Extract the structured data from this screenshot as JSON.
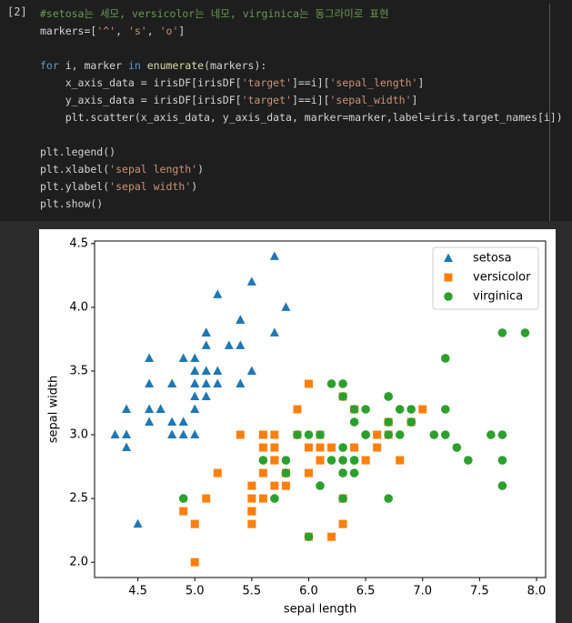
{
  "cell": {
    "prompt": "[2]",
    "code": [
      [
        "#setosa는 세모, versicolor는 네모, virginica는 동그라미로 표현",
        "markers=['^', 's', 'o']"
      ],
      [
        "for i, marker in enumerate(markers):",
        "    x_axis_data = irisDF[irisDF['target']==i]['sepal_length']",
        "    y_axis_data = irisDF[irisDF['target']==i]['sepal_width']",
        "    plt.scatter(x_axis_data, y_axis_data, marker=marker,label=iris.target_names[i])"
      ],
      [
        "plt.legend()",
        "plt.xlabel('sepal length')",
        "plt.ylabel('sepal width')",
        "plt.show()"
      ]
    ]
  },
  "chart_data": {
    "type": "scatter",
    "x_label": "sepal length",
    "y_label": "sepal width",
    "xlim": [
      4.12,
      8.08
    ],
    "ylim": [
      1.88,
      4.52
    ],
    "xticks": [
      4.5,
      {
        "value": 5,
        "label": "5.0"
      },
      5.5,
      {
        "value": 6,
        "label": "6.0"
      },
      6.5,
      {
        "value": 7,
        "label": "7.0"
      },
      7.5,
      {
        "value": 8,
        "label": "8.0"
      }
    ],
    "yticks": [
      {
        "value": 2,
        "label": "2.0"
      },
      2.5,
      {
        "value": 3,
        "label": "3.0"
      },
      3.5,
      {
        "value": 4,
        "label": "4.0"
      },
      4.5
    ],
    "grid": false,
    "legend": "upper right",
    "series": [
      {
        "name": "setosa",
        "color": "#1f77b4",
        "marker": "triangle",
        "x": [
          5.1,
          4.9,
          4.7,
          4.6,
          5.0,
          5.4,
          4.6,
          5.0,
          4.4,
          4.9,
          5.4,
          4.8,
          4.8,
          4.3,
          5.8,
          5.7,
          5.4,
          5.1,
          5.7,
          5.1,
          5.4,
          5.1,
          4.6,
          5.1,
          4.8,
          5.0,
          5.0,
          5.2,
          5.2,
          4.7,
          4.8,
          5.4,
          5.2,
          5.5,
          4.9,
          5.0,
          5.5,
          4.9,
          4.4,
          5.1,
          5.0,
          4.5,
          4.4,
          5.0,
          5.1,
          4.8,
          5.1,
          4.6,
          5.3,
          5.0
        ],
        "values": [
          3.5,
          3.0,
          3.2,
          3.1,
          3.6,
          3.9,
          3.4,
          3.4,
          2.9,
          3.1,
          3.7,
          3.4,
          3.0,
          3.0,
          4.0,
          4.4,
          3.9,
          3.5,
          3.8,
          3.8,
          3.4,
          3.7,
          3.6,
          3.3,
          3.4,
          3.0,
          3.4,
          3.5,
          3.4,
          3.2,
          3.1,
          3.4,
          4.1,
          4.2,
          3.1,
          3.2,
          3.5,
          3.6,
          3.0,
          3.4,
          3.5,
          2.3,
          3.2,
          3.5,
          3.8,
          3.0,
          3.8,
          3.2,
          3.7,
          3.3
        ]
      },
      {
        "name": "versicolor",
        "color": "#ff7f0e",
        "marker": "square",
        "x": [
          7.0,
          6.4,
          6.9,
          5.5,
          6.5,
          5.7,
          6.3,
          4.9,
          6.6,
          5.2,
          5.0,
          5.9,
          6.0,
          6.1,
          5.6,
          6.7,
          5.6,
          5.8,
          6.2,
          5.6,
          5.9,
          6.1,
          6.3,
          6.1,
          6.4,
          6.6,
          6.8,
          6.7,
          6.0,
          5.7,
          5.5,
          5.5,
          5.8,
          6.0,
          5.4,
          6.0,
          6.7,
          6.3,
          5.6,
          5.5,
          5.5,
          6.1,
          5.8,
          5.0,
          5.6,
          5.7,
          5.7,
          6.2,
          5.1,
          5.7
        ],
        "values": [
          3.2,
          3.2,
          3.1,
          2.3,
          2.8,
          2.8,
          3.3,
          2.4,
          2.9,
          2.7,
          2.0,
          3.0,
          2.2,
          2.9,
          2.9,
          3.1,
          3.0,
          2.7,
          2.2,
          2.5,
          3.2,
          2.8,
          2.5,
          2.8,
          2.9,
          3.0,
          2.8,
          3.0,
          2.9,
          2.6,
          2.4,
          2.4,
          2.7,
          2.7,
          3.0,
          3.4,
          3.1,
          2.3,
          3.0,
          2.5,
          2.6,
          3.0,
          2.6,
          2.3,
          2.7,
          3.0,
          2.9,
          2.9,
          2.5,
          2.8
        ]
      },
      {
        "name": "virginica",
        "color": "#2ca02c",
        "marker": "circle",
        "x": [
          6.3,
          5.8,
          7.1,
          6.3,
          6.5,
          7.6,
          4.9,
          7.3,
          6.7,
          7.2,
          6.5,
          6.4,
          6.8,
          5.7,
          5.8,
          6.4,
          6.5,
          7.7,
          7.7,
          6.0,
          6.9,
          5.6,
          7.7,
          6.3,
          6.7,
          7.2,
          6.2,
          6.1,
          6.4,
          7.2,
          7.4,
          7.9,
          6.4,
          6.3,
          6.1,
          7.7,
          6.3,
          6.4,
          6.0,
          6.9,
          6.7,
          6.9,
          5.8,
          6.8,
          6.7,
          6.7,
          6.3,
          6.5,
          6.2,
          5.9
        ],
        "values": [
          3.3,
          2.7,
          3.0,
          2.9,
          3.0,
          3.0,
          2.5,
          2.9,
          2.5,
          3.6,
          3.2,
          2.7,
          3.0,
          2.5,
          2.8,
          3.2,
          3.0,
          3.8,
          2.6,
          2.2,
          3.2,
          2.8,
          2.8,
          2.7,
          3.3,
          3.2,
          2.8,
          3.0,
          2.8,
          3.0,
          2.8,
          3.8,
          2.8,
          2.8,
          2.6,
          3.0,
          3.4,
          3.1,
          3.0,
          3.1,
          3.1,
          3.1,
          2.7,
          3.2,
          3.3,
          3.0,
          2.5,
          3.0,
          3.4,
          3.0
        ]
      }
    ]
  }
}
